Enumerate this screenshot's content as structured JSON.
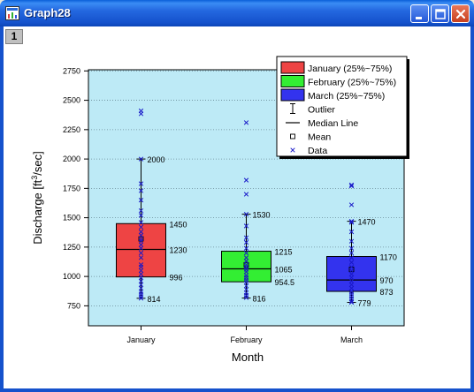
{
  "window": {
    "title": "Graph28",
    "layer_label": "1",
    "minimize_icon": "minimize-icon",
    "maximize_icon": "maximize-icon",
    "close_icon": "close-icon"
  },
  "chart_data": {
    "type": "box",
    "xlabel": "Month",
    "ylabel_main": "Discharge [ft",
    "ylabel_sup": "3",
    "ylabel_tail": "/sec]",
    "yticks": [
      750,
      1000,
      1250,
      1500,
      1750,
      2000,
      2250,
      2500,
      2750
    ],
    "yrange": [
      580,
      2760
    ],
    "grid": true,
    "plot_background": "#BDEAF6",
    "legend_placement": "top-right",
    "legend": [
      {
        "label": "January (25%~75%)",
        "kind": "box",
        "color": "#EE4444"
      },
      {
        "label": "February (25%~75%)",
        "kind": "box",
        "color": "#33EE33"
      },
      {
        "label": "March (25%~75%)",
        "kind": "box",
        "color": "#3333EE"
      },
      {
        "label": "Outlier",
        "kind": "whisker"
      },
      {
        "label": "Median Line",
        "kind": "line"
      },
      {
        "label": "Mean",
        "kind": "square"
      },
      {
        "label": "Data",
        "kind": "x"
      }
    ],
    "categories": [
      "January",
      "February",
      "March"
    ],
    "boxes": [
      {
        "category": "January",
        "color": "#EE4444",
        "q1": 996,
        "median": 1230,
        "q3": 1450,
        "lower": 814,
        "upper": 2000,
        "mean": 1320,
        "labels": {
          "upper": "2000",
          "q3": "1450",
          "median": "1230",
          "q1": "996",
          "lower": "814"
        },
        "data": [
          2410,
          2385,
          2000,
          1790,
          1730,
          1650,
          1560,
          1520,
          1460,
          1420,
          1380,
          1350,
          1320,
          1300,
          1270,
          1240,
          1200,
          1160,
          1100,
          1080,
          1050,
          1020,
          990,
          960,
          930,
          900,
          870,
          850,
          830,
          814
        ]
      },
      {
        "category": "February",
        "color": "#33EE33",
        "q1": 954.5,
        "median": 1065,
        "q3": 1215,
        "lower": 816,
        "upper": 1530,
        "mean": 1100,
        "labels": {
          "upper": "1530",
          "q3": "1215",
          "median": "1065",
          "q1": "954.5",
          "lower": "816"
        },
        "data": [
          2310,
          1820,
          1700,
          1530,
          1430,
          1330,
          1290,
          1240,
          1200,
          1160,
          1130,
          1100,
          1080,
          1060,
          1040,
          1010,
          990,
          970,
          950,
          920,
          890,
          860,
          840,
          820
        ]
      },
      {
        "category": "March",
        "color": "#3333EE",
        "q1": 873,
        "median": 970,
        "q3": 1170,
        "lower": 779,
        "upper": 1470,
        "mean": 1060,
        "labels": {
          "upper": "1470",
          "q3": "1170",
          "median": "970",
          "q1": "873",
          "lower": "779"
        },
        "data": [
          1780,
          1770,
          1610,
          1470,
          1460,
          1380,
          1300,
          1240,
          1200,
          1160,
          1120,
          1080,
          1050,
          1020,
          990,
          960,
          930,
          900,
          870,
          850,
          830,
          810,
          790,
          779
        ]
      }
    ]
  }
}
